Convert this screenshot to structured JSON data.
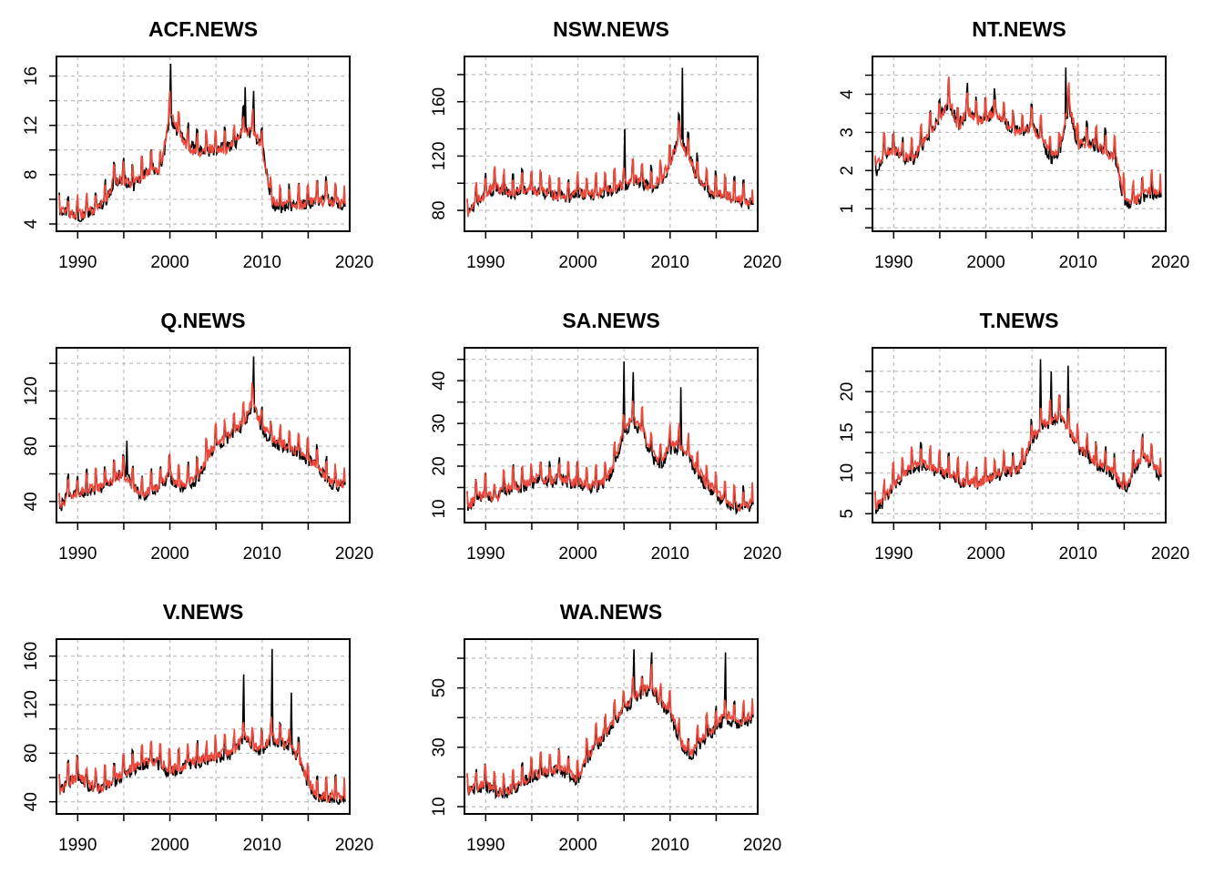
{
  "colors": {
    "actual": "#000000",
    "fitted": "#f0483a",
    "grid": "#bdbdbd"
  },
  "chart_data": [
    {
      "type": "line",
      "title": "ACF.NEWS",
      "xlim": [
        1988,
        2019
      ],
      "ylim": [
        4,
        17
      ],
      "xticks": [
        1990,
        2000,
        2010,
        2020
      ],
      "yticks": [
        4,
        8,
        12,
        16
      ],
      "grid": true,
      "x": [
        1988,
        1989,
        1990,
        1991,
        1992,
        1993,
        1994,
        1995,
        1996,
        1997,
        1998,
        1999,
        2000,
        2001,
        2002,
        2003,
        2004,
        2005,
        2006,
        2007,
        2008,
        2009,
        2010,
        2011,
        2012,
        2013,
        2014,
        2015,
        2016,
        2017,
        2018,
        2019
      ],
      "series": [
        {
          "values": [
            5.3,
            4.9,
            4.6,
            4.8,
            5.2,
            5.8,
            7.4,
            7.6,
            7.0,
            7.8,
            8.6,
            8.0,
            12.8,
            11.2,
            10.4,
            10.0,
            9.8,
            10.0,
            10.2,
            10.4,
            11.8,
            11.2,
            10.6,
            5.6,
            5.2,
            5.4,
            5.5,
            5.6,
            5.8,
            6.0,
            5.6,
            5.4
          ]
        },
        {
          "values": [
            5.2,
            4.8,
            4.7,
            4.9,
            5.3,
            5.9,
            7.6,
            7.4,
            7.2,
            7.9,
            8.4,
            8.3,
            13.2,
            11.4,
            10.2,
            9.8,
            10.0,
            10.2,
            10.0,
            10.6,
            11.4,
            11.6,
            10.2,
            6.0,
            5.4,
            5.6,
            5.4,
            5.8,
            6.0,
            5.8,
            5.8,
            5.6
          ]
        }
      ],
      "peaks": [
        [
          2000.1,
          17.2
        ],
        [
          2008.2,
          15.1
        ],
        [
          2009.1,
          14.8
        ]
      ]
    },
    {
      "type": "line",
      "title": "NSW.NEWS",
      "xlim": [
        1988,
        2019
      ],
      "ylim": [
        70,
        188
      ],
      "xticks": [
        1990,
        2000,
        2010,
        2020
      ],
      "yticks": [
        80,
        120,
        160
      ],
      "grid": true,
      "x": [
        1988,
        1989,
        1990,
        1991,
        1992,
        1993,
        1994,
        1995,
        1996,
        1997,
        1998,
        1999,
        2000,
        2001,
        2002,
        2003,
        2004,
        2005,
        2006,
        2007,
        2008,
        2009,
        2010,
        2011,
        2012,
        2013,
        2014,
        2015,
        2016,
        2017,
        2018,
        2019
      ],
      "series": [
        {
          "values": [
            76,
            85,
            92,
            96,
            94,
            92,
            95,
            94,
            93,
            91,
            90,
            89,
            93,
            90,
            92,
            94,
            96,
            98,
            102,
            100,
            96,
            102,
            112,
            138,
            120,
            104,
            94,
            92,
            90,
            88,
            86,
            84
          ]
        },
        {
          "values": [
            78,
            86,
            93,
            97,
            95,
            93,
            96,
            95,
            94,
            92,
            91,
            90,
            94,
            91,
            93,
            95,
            97,
            99,
            103,
            101,
            97,
            103,
            115,
            135,
            118,
            103,
            95,
            93,
            91,
            89,
            87,
            85
          ]
        }
      ],
      "peaks": [
        [
          2011.3,
          185
        ],
        [
          2005.1,
          140
        ]
      ]
    },
    {
      "type": "line",
      "title": "NT.NEWS",
      "xlim": [
        1988,
        2019
      ],
      "ylim": [
        0.6,
        4.8
      ],
      "xticks": [
        1990,
        2000,
        2010,
        2020
      ],
      "yticks": [
        1,
        2,
        3,
        4
      ],
      "grid": true,
      "x": [
        1988,
        1989,
        1990,
        1991,
        1992,
        1993,
        1994,
        1995,
        1996,
        1997,
        1998,
        1999,
        2000,
        2001,
        2002,
        2003,
        2004,
        2005,
        2006,
        2007,
        2008,
        2009,
        2010,
        2011,
        2012,
        2013,
        2014,
        2015,
        2016,
        2017,
        2018,
        2019
      ],
      "series": [
        {
          "values": [
            1.9,
            2.4,
            2.6,
            2.3,
            2.2,
            2.6,
            3.0,
            3.4,
            3.8,
            3.2,
            3.5,
            3.4,
            3.3,
            3.6,
            3.2,
            3.1,
            3.0,
            3.2,
            2.8,
            2.3,
            2.5,
            3.7,
            2.6,
            2.8,
            2.6,
            2.5,
            2.3,
            1.2,
            1.1,
            1.3,
            1.4,
            1.3
          ]
        },
        {
          "values": [
            2.0,
            2.5,
            2.5,
            2.4,
            2.3,
            2.7,
            3.1,
            3.3,
            3.9,
            3.1,
            3.6,
            3.3,
            3.4,
            3.5,
            3.3,
            3.0,
            3.1,
            3.1,
            2.9,
            2.4,
            2.6,
            3.8,
            2.7,
            2.7,
            2.7,
            2.4,
            2.4,
            1.3,
            1.2,
            1.3,
            1.5,
            1.4
          ]
        }
      ],
      "peaks": [
        [
          2008.7,
          4.7
        ],
        [
          1998.0,
          4.3
        ]
      ]
    },
    {
      "type": "line",
      "title": "Q.NEWS",
      "xlim": [
        1988,
        2019
      ],
      "ylim": [
        30,
        146
      ],
      "xticks": [
        1990,
        2000,
        2010,
        2020
      ],
      "yticks": [
        40,
        80,
        120
      ],
      "grid": true,
      "x": [
        1988,
        1989,
        1990,
        1991,
        1992,
        1993,
        1994,
        1995,
        1996,
        1997,
        1998,
        1999,
        2000,
        2001,
        2002,
        2003,
        2004,
        2005,
        2006,
        2007,
        2008,
        2009,
        2010,
        2011,
        2012,
        2013,
        2014,
        2015,
        2016,
        2017,
        2018,
        2019
      ],
      "series": [
        {
          "values": [
            34,
            46,
            45,
            47,
            48,
            50,
            56,
            62,
            50,
            44,
            47,
            52,
            58,
            50,
            52,
            56,
            70,
            80,
            84,
            88,
            96,
            110,
            92,
            84,
            80,
            78,
            74,
            70,
            66,
            56,
            50,
            52
          ]
        },
        {
          "values": [
            35,
            45,
            46,
            48,
            49,
            51,
            57,
            60,
            51,
            45,
            48,
            53,
            60,
            51,
            53,
            57,
            72,
            82,
            86,
            90,
            98,
            112,
            94,
            86,
            82,
            80,
            76,
            72,
            64,
            58,
            52,
            54
          ]
        }
      ],
      "peaks": [
        [
          2009.1,
          145
        ],
        [
          1995.3,
          84
        ]
      ]
    },
    {
      "type": "line",
      "title": "SA.NEWS",
      "xlim": [
        1988,
        2019
      ],
      "ylim": [
        8.5,
        46
      ],
      "xticks": [
        1990,
        2000,
        2010,
        2020
      ],
      "yticks": [
        10,
        20,
        30,
        40
      ],
      "grid": true,
      "x": [
        1988,
        1989,
        1990,
        1991,
        1992,
        1993,
        1994,
        1995,
        1996,
        1997,
        1998,
        1999,
        2000,
        2001,
        2002,
        2003,
        2004,
        2005,
        2006,
        2007,
        2008,
        2009,
        2010,
        2011,
        2012,
        2013,
        2014,
        2015,
        2016,
        2017,
        2018,
        2019
      ],
      "series": [
        {
          "values": [
            10,
            12,
            13,
            12,
            14,
            15,
            15,
            16,
            17,
            16,
            17,
            16,
            16,
            15,
            15,
            16,
            20,
            28,
            30,
            28,
            22,
            20,
            24,
            24,
            22,
            18,
            15,
            13,
            11,
            10,
            10,
            11
          ]
        },
        {
          "values": [
            10.5,
            12.5,
            13.5,
            12.5,
            14.5,
            15.5,
            15.5,
            16.5,
            17.5,
            16.5,
            17.5,
            16.5,
            16.5,
            15.5,
            15.5,
            16.5,
            21,
            29,
            31,
            29,
            23,
            21,
            25,
            25,
            23,
            19,
            16,
            14,
            12,
            10.5,
            10.5,
            11.5
          ]
        }
      ],
      "peaks": [
        [
          2005.0,
          44.5
        ],
        [
          2006.0,
          42
        ],
        [
          2011.2,
          38.5
        ]
      ]
    },
    {
      "type": "line",
      "title": "T.NEWS",
      "xlim": [
        1988,
        2019
      ],
      "ylim": [
        4.8,
        24.5
      ],
      "xticks": [
        1990,
        2000,
        2010,
        2020
      ],
      "yticks": [
        5,
        10,
        15,
        20
      ],
      "grid": true,
      "x": [
        1988,
        1989,
        1990,
        1991,
        1992,
        1993,
        1994,
        1995,
        1996,
        1997,
        1998,
        1999,
        2000,
        2001,
        2002,
        2003,
        2004,
        2005,
        2006,
        2007,
        2008,
        2009,
        2010,
        2011,
        2012,
        2013,
        2014,
        2015,
        2016,
        2017,
        2018,
        2019
      ],
      "series": [
        {
          "values": [
            5.5,
            6.5,
            8.5,
            9.5,
            10.5,
            11,
            10.5,
            10,
            9.5,
            9,
            8.5,
            8.5,
            9,
            9.5,
            10,
            10,
            11,
            14,
            15.5,
            16,
            17,
            15,
            13,
            12,
            11,
            10.5,
            9.5,
            7.5,
            10,
            12,
            11,
            9.5
          ]
        },
        {
          "values": [
            5.8,
            6.8,
            8.8,
            9.8,
            10.8,
            11.2,
            10.8,
            10.3,
            9.8,
            9.3,
            8.8,
            8.8,
            9.3,
            9.8,
            10.3,
            10.3,
            11.3,
            14.3,
            15.8,
            16.3,
            17.2,
            15.3,
            13.3,
            12.3,
            11.3,
            10.8,
            9.8,
            7.8,
            10.3,
            12.3,
            11.3,
            9.8
          ]
        }
      ],
      "peaks": [
        [
          2005.9,
          24
        ],
        [
          2008.9,
          23.2
        ],
        [
          2007.1,
          22.5
        ]
      ]
    },
    {
      "type": "line",
      "title": "V.NEWS",
      "xlim": [
        1988,
        2019
      ],
      "ylim": [
        36,
        168
      ],
      "xticks": [
        1990,
        2000,
        2010,
        2020
      ],
      "yticks": [
        40,
        80,
        120,
        160
      ],
      "grid": true,
      "x": [
        1988,
        1989,
        1990,
        1991,
        1992,
        1993,
        1994,
        1995,
        1996,
        1997,
        1998,
        1999,
        2000,
        2001,
        2002,
        2003,
        2004,
        2005,
        2006,
        2007,
        2008,
        2009,
        2010,
        2011,
        2012,
        2013,
        2014,
        2015,
        2016,
        2017,
        2018,
        2019
      ],
      "series": [
        {
          "values": [
            48,
            56,
            60,
            54,
            50,
            52,
            56,
            62,
            66,
            70,
            72,
            70,
            64,
            66,
            70,
            72,
            74,
            76,
            78,
            80,
            92,
            84,
            82,
            90,
            88,
            84,
            74,
            54,
            44,
            42,
            44,
            40
          ]
        },
        {
          "values": [
            49,
            57,
            61,
            55,
            51,
            53,
            58,
            64,
            68,
            72,
            74,
            72,
            66,
            68,
            72,
            74,
            76,
            78,
            80,
            82,
            95,
            86,
            84,
            93,
            90,
            86,
            76,
            56,
            46,
            44,
            46,
            42
          ]
        }
      ],
      "peaks": [
        [
          2011.1,
          166
        ],
        [
          2008.0,
          145
        ],
        [
          2013.2,
          130
        ]
      ]
    },
    {
      "type": "line",
      "title": "WA.NEWS",
      "xlim": [
        1988,
        2019
      ],
      "ylim": [
        10,
        64
      ],
      "xticks": [
        1990,
        2000,
        2010,
        2020
      ],
      "yticks": [
        10,
        30,
        50
      ],
      "grid": true,
      "x": [
        1988,
        1989,
        1990,
        1991,
        1992,
        1993,
        1994,
        1995,
        1996,
        1997,
        1998,
        1999,
        2000,
        2001,
        2002,
        2003,
        2004,
        2005,
        2006,
        2007,
        2008,
        2009,
        2010,
        2011,
        2012,
        2013,
        2014,
        2015,
        2016,
        2017,
        2018,
        2019
      ],
      "series": [
        {
          "values": [
            15,
            16,
            17,
            15,
            14,
            16,
            18,
            20,
            21,
            22,
            22,
            21,
            18,
            26,
            30,
            34,
            38,
            42,
            46,
            48,
            50,
            44,
            42,
            32,
            26,
            30,
            34,
            36,
            40,
            38,
            38,
            40
          ]
        },
        {
          "values": [
            15.5,
            16.5,
            17.5,
            15.5,
            14.5,
            16.5,
            18.5,
            20.5,
            21.5,
            22.5,
            22.5,
            21.5,
            18.5,
            27,
            31,
            35,
            39,
            43,
            47,
            49,
            51,
            45,
            43,
            33,
            27,
            31,
            35,
            37,
            41,
            39,
            39,
            41
          ]
        }
      ],
      "peaks": [
        [
          2006.1,
          63
        ],
        [
          2008.0,
          62
        ],
        [
          2016.0,
          62
        ]
      ]
    }
  ]
}
